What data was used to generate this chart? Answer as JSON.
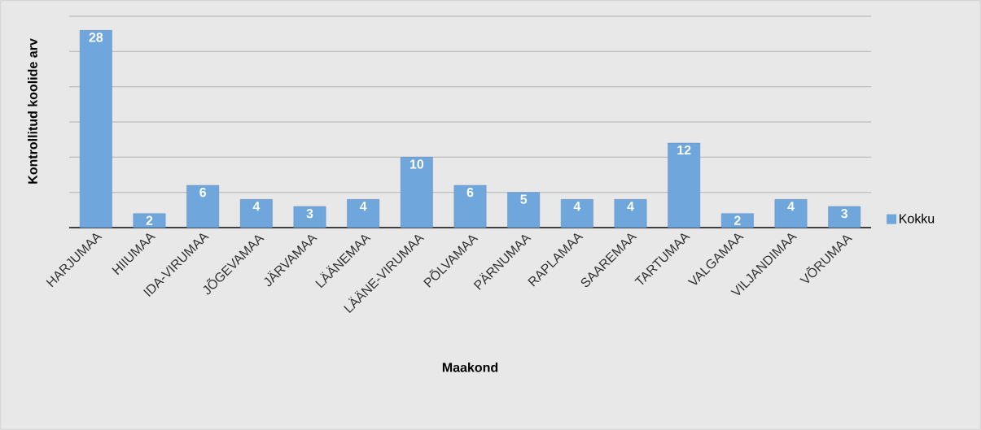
{
  "chart_data": {
    "type": "bar",
    "xlabel": "Maakond",
    "ylabel": "Kontrollitud koolide arv",
    "categories": [
      "HARJUMAA",
      "HIIUMAA",
      "IDA-VIRUMAA",
      "JÕGEVAMAA",
      "JÄRVAMAA",
      "LÄÄNEMAA",
      "LÄÄNE-VIRUMAA",
      "PÕLVAMAA",
      "PÄRNUMAA",
      "RAPLAMAA",
      "SAAREMAA",
      "TARTUMAA",
      "VALGAMAA",
      "VILJANDIMAA",
      "VÕRUMAA"
    ],
    "series": [
      {
        "name": "Kokku",
        "color": "#6fa6dc",
        "values": [
          28,
          2,
          6,
          4,
          3,
          4,
          10,
          6,
          5,
          4,
          4,
          12,
          2,
          4,
          3
        ]
      }
    ],
    "ylim": [
      0,
      30
    ],
    "yticks": [
      {
        "value": 0,
        "label": null
      },
      {
        "value": 5,
        "label": null
      },
      {
        "value": 10,
        "label": null
      },
      {
        "value": 15,
        "label": null
      },
      {
        "value": 20,
        "label": null
      },
      {
        "value": 25,
        "label": null
      },
      {
        "value": 30,
        "label": null
      }
    ],
    "grid": "y",
    "legend": "right",
    "tick_labels": "x",
    "data_labels": true
  }
}
